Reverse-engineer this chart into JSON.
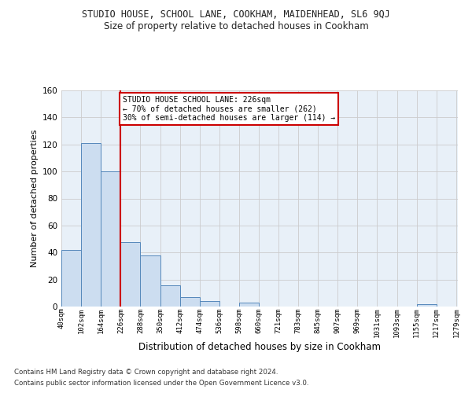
{
  "title": "STUDIO HOUSE, SCHOOL LANE, COOKHAM, MAIDENHEAD, SL6 9QJ",
  "subtitle": "Size of property relative to detached houses in Cookham",
  "xlabel": "Distribution of detached houses by size in Cookham",
  "ylabel": "Number of detached properties",
  "bar_left_edges": [
    40,
    102,
    164,
    226,
    288,
    350,
    412,
    474,
    536,
    598,
    660,
    721,
    783,
    845,
    907,
    969,
    1031,
    1093,
    1155,
    1217
  ],
  "bar_heights": [
    42,
    121,
    100,
    48,
    38,
    16,
    7,
    4,
    0,
    3,
    0,
    0,
    0,
    0,
    0,
    0,
    0,
    0,
    2,
    0
  ],
  "bin_width": 62,
  "bar_color": "#ccddf0",
  "bar_edge_color": "#5588bb",
  "vline_x": 226,
  "vline_color": "#cc0000",
  "annotation_line1": "STUDIO HOUSE SCHOOL LANE: 226sqm",
  "annotation_line2": "← 70% of detached houses are smaller (262)",
  "annotation_line3": "30% of semi-detached houses are larger (114) →",
  "annotation_box_color": "#ffffff",
  "annotation_box_edge": "#cc0000",
  "ylim": [
    0,
    160
  ],
  "yticks": [
    0,
    20,
    40,
    60,
    80,
    100,
    120,
    140,
    160
  ],
  "x_tick_labels": [
    "40sqm",
    "102sqm",
    "164sqm",
    "226sqm",
    "288sqm",
    "350sqm",
    "412sqm",
    "474sqm",
    "536sqm",
    "598sqm",
    "660sqm",
    "721sqm",
    "783sqm",
    "845sqm",
    "907sqm",
    "969sqm",
    "1031sqm",
    "1093sqm",
    "1155sqm",
    "1217sqm",
    "1279sqm"
  ],
  "grid_color": "#cccccc",
  "bg_color": "#e8f0f8",
  "footnote1": "Contains HM Land Registry data © Crown copyright and database right 2024.",
  "footnote2": "Contains public sector information licensed under the Open Government Licence v3.0."
}
